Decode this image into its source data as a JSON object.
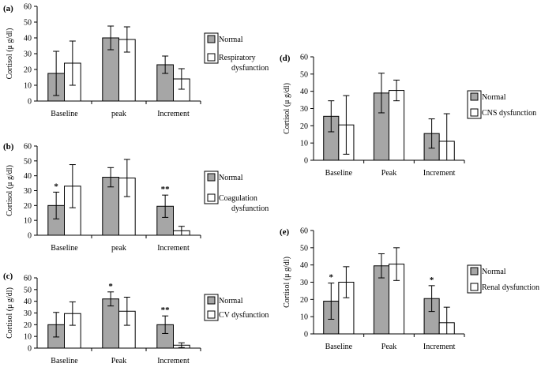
{
  "chart_data": [
    {
      "id": "a",
      "type": "bar",
      "panel_label": "(a)",
      "ylabel": "Cortisol (μ g/dl)",
      "ylim": [
        0,
        60
      ],
      "yticks": [
        0,
        10,
        20,
        30,
        40,
        50,
        60
      ],
      "categories": [
        "Baseline",
        "peak",
        "Increment"
      ],
      "series": [
        {
          "name": "Normal",
          "color": "#a6a6a6",
          "values": [
            17.5,
            40,
            23
          ],
          "errors": [
            14,
            7.5,
            5.5
          ]
        },
        {
          "name": "Respiratory dysfunction",
          "color": "#ffffff",
          "values": [
            24,
            39,
            14
          ],
          "errors": [
            14,
            8,
            6.5
          ]
        }
      ],
      "legend": [
        "Normal",
        "Respiratory",
        "dysfunction"
      ],
      "significance": [
        "",
        "",
        ""
      ]
    },
    {
      "id": "b",
      "type": "bar",
      "panel_label": "(b)",
      "ylabel": "Cortisol (μ g/dl)",
      "ylim": [
        0,
        60
      ],
      "yticks": [
        0,
        10,
        20,
        30,
        40,
        50,
        60
      ],
      "categories": [
        "Baseline",
        "peak",
        "Increment"
      ],
      "series": [
        {
          "name": "Normal",
          "color": "#a6a6a6",
          "values": [
            20,
            39,
            19.5
          ],
          "errors": [
            9,
            6.5,
            7.5
          ]
        },
        {
          "name": "Coagulation dysfunction",
          "color": "#ffffff",
          "values": [
            33,
            38.5,
            3
          ],
          "errors": [
            14.5,
            12.5,
            3
          ]
        }
      ],
      "legend": [
        "Normal",
        "Coagulation",
        "dysfunction"
      ],
      "significance": [
        "*",
        "",
        "**"
      ]
    },
    {
      "id": "c",
      "type": "bar",
      "panel_label": "(c)",
      "ylabel": "Cortisol (μ g/dl)",
      "ylim": [
        0,
        60
      ],
      "yticks": [
        0,
        10,
        20,
        30,
        40,
        50,
        60
      ],
      "categories": [
        "Baseline",
        "Peak",
        "Increment"
      ],
      "series": [
        {
          "name": "Normal",
          "color": "#a6a6a6",
          "values": [
            20,
            42,
            20
          ],
          "errors": [
            10.5,
            6,
            7.5
          ]
        },
        {
          "name": "CV dysfunction",
          "color": "#ffffff",
          "values": [
            29.5,
            31.5,
            2.5
          ],
          "errors": [
            10,
            12,
            2
          ]
        }
      ],
      "legend": [
        "Normal",
        "CV dysfunction"
      ],
      "significance": [
        "",
        "*",
        "**"
      ]
    },
    {
      "id": "d",
      "type": "bar",
      "panel_label": "(d)",
      "ylabel": "Cortisol (μ g/dl)",
      "ylim": [
        0,
        60
      ],
      "yticks": [
        0,
        10,
        20,
        30,
        40,
        50,
        60
      ],
      "categories": [
        "Baseline",
        "Peak",
        "Increment"
      ],
      "series": [
        {
          "name": "Normal",
          "color": "#a6a6a6",
          "values": [
            25.5,
            39,
            15.5
          ],
          "errors": [
            9,
            11.5,
            8.5
          ]
        },
        {
          "name": "CNS dysfunction",
          "color": "#ffffff",
          "values": [
            20.5,
            40.5,
            11
          ],
          "errors": [
            17,
            6,
            16
          ]
        }
      ],
      "legend": [
        "Normal",
        "CNS dysfunction"
      ],
      "significance": [
        "",
        "",
        ""
      ]
    },
    {
      "id": "e",
      "type": "bar",
      "panel_label": "(e)",
      "ylabel": "Cortisol (μ g/dl)",
      "ylim": [
        0,
        60
      ],
      "yticks": [
        0,
        10,
        20,
        30,
        40,
        50,
        60
      ],
      "categories": [
        "Baseline",
        "Peak",
        "Increment"
      ],
      "series": [
        {
          "name": "Normal",
          "color": "#a6a6a6",
          "values": [
            19,
            39.5,
            20.5
          ],
          "errors": [
            10.5,
            7,
            7.5
          ]
        },
        {
          "name": "Renal dysfunction",
          "color": "#ffffff",
          "values": [
            30,
            40.5,
            6.5
          ],
          "errors": [
            9,
            9.5,
            9
          ]
        }
      ],
      "legend": [
        "Normal",
        "Renal dysfunction"
      ],
      "significance": [
        "*",
        "",
        "*"
      ]
    }
  ]
}
